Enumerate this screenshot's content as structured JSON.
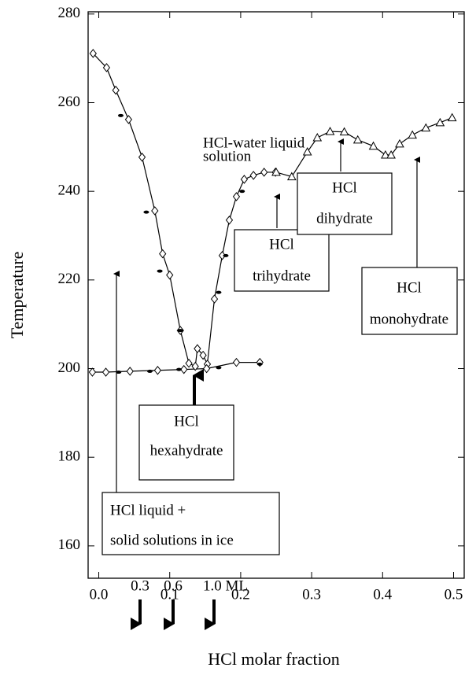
{
  "chart_data": {
    "type": "scatter",
    "x_label": "HCl molar fraction",
    "y_label": "Temperature",
    "xlim": [
      -0.015,
      0.515
    ],
    "ylim": [
      152.7,
      280.5
    ],
    "xticks": [
      {
        "value": 0,
        "label": "0.0"
      },
      0.1,
      0.2,
      0.3,
      0.4,
      0.5
    ],
    "yticks": [
      160,
      180,
      200,
      220,
      240,
      260,
      280
    ],
    "series": [
      {
        "marker": "diamond",
        "line": true,
        "color": "#000000",
        "x": [
          -0.008,
          0.011,
          0.024,
          0.042,
          0.061,
          0.079,
          0.09,
          0.1,
          0.115,
          0.127,
          0.136,
          0.139,
          0.147,
          0.153,
          0.163,
          0.174,
          0.184,
          0.194,
          0.205,
          0.218,
          0.233,
          0.249
        ],
        "values": [
          271.1,
          267.9,
          262.8,
          256.2,
          247.7,
          235.6,
          225.9,
          221.1,
          208.6,
          201.2,
          200.5,
          204.5,
          203.0,
          201.0,
          215.7,
          225.5,
          233.5,
          238.8,
          242.7,
          243.6,
          244.3,
          244.3
        ]
      },
      {
        "marker": "diamond",
        "line": true,
        "color": "#000000",
        "x": [
          -0.009,
          0.01,
          0.044,
          0.083,
          0.12,
          0.152,
          0.194,
          0.227
        ],
        "values": [
          199.2,
          199.2,
          199.4,
          199.6,
          199.8,
          200.0,
          201.4,
          201.4
        ]
      },
      {
        "marker": "dot",
        "line": false,
        "color": "#000000",
        "x": [
          0.031,
          0.067,
          0.086,
          0.115,
          0.169,
          0.179,
          0.202,
          0.028,
          0.072,
          0.113,
          0.169,
          0.227
        ],
        "values": [
          257.1,
          235.3,
          222.0,
          208.6,
          217.2,
          225.5,
          240.0,
          199.2,
          199.4,
          199.8,
          200.2,
          201.0
        ]
      },
      {
        "marker": "triangle",
        "line": true,
        "color": "#000000",
        "x": [
          0.25,
          0.272,
          0.294,
          0.308,
          0.326,
          0.346,
          0.365,
          0.387,
          0.404,
          0.412,
          0.424,
          0.442,
          0.461,
          0.481,
          0.498
        ],
        "values": [
          244.3,
          243.3,
          248.9,
          252.1,
          253.5,
          253.4,
          251.6,
          250.2,
          248.2,
          248.2,
          250.7,
          252.7,
          254.3,
          255.5,
          256.6
        ]
      }
    ],
    "annotations": [
      {
        "lines": [
          "HCl-water liquid",
          "solution"
        ]
      },
      {
        "lines": [
          "HCl",
          "hexahydrate"
        ]
      },
      {
        "lines": [
          "HCl",
          "trihydrate"
        ]
      },
      {
        "lines": [
          "HCl",
          "dihydrate"
        ]
      },
      {
        "lines": [
          "HCl",
          "monohydrate"
        ]
      },
      {
        "lines": [
          "HCl liquid  +",
          "solid solutions in ice"
        ]
      },
      {
        "lines": [
          "0.3"
        ]
      },
      {
        "lines": [
          "0.6"
        ]
      },
      {
        "lines": [
          "1.0 ML"
        ]
      }
    ]
  }
}
